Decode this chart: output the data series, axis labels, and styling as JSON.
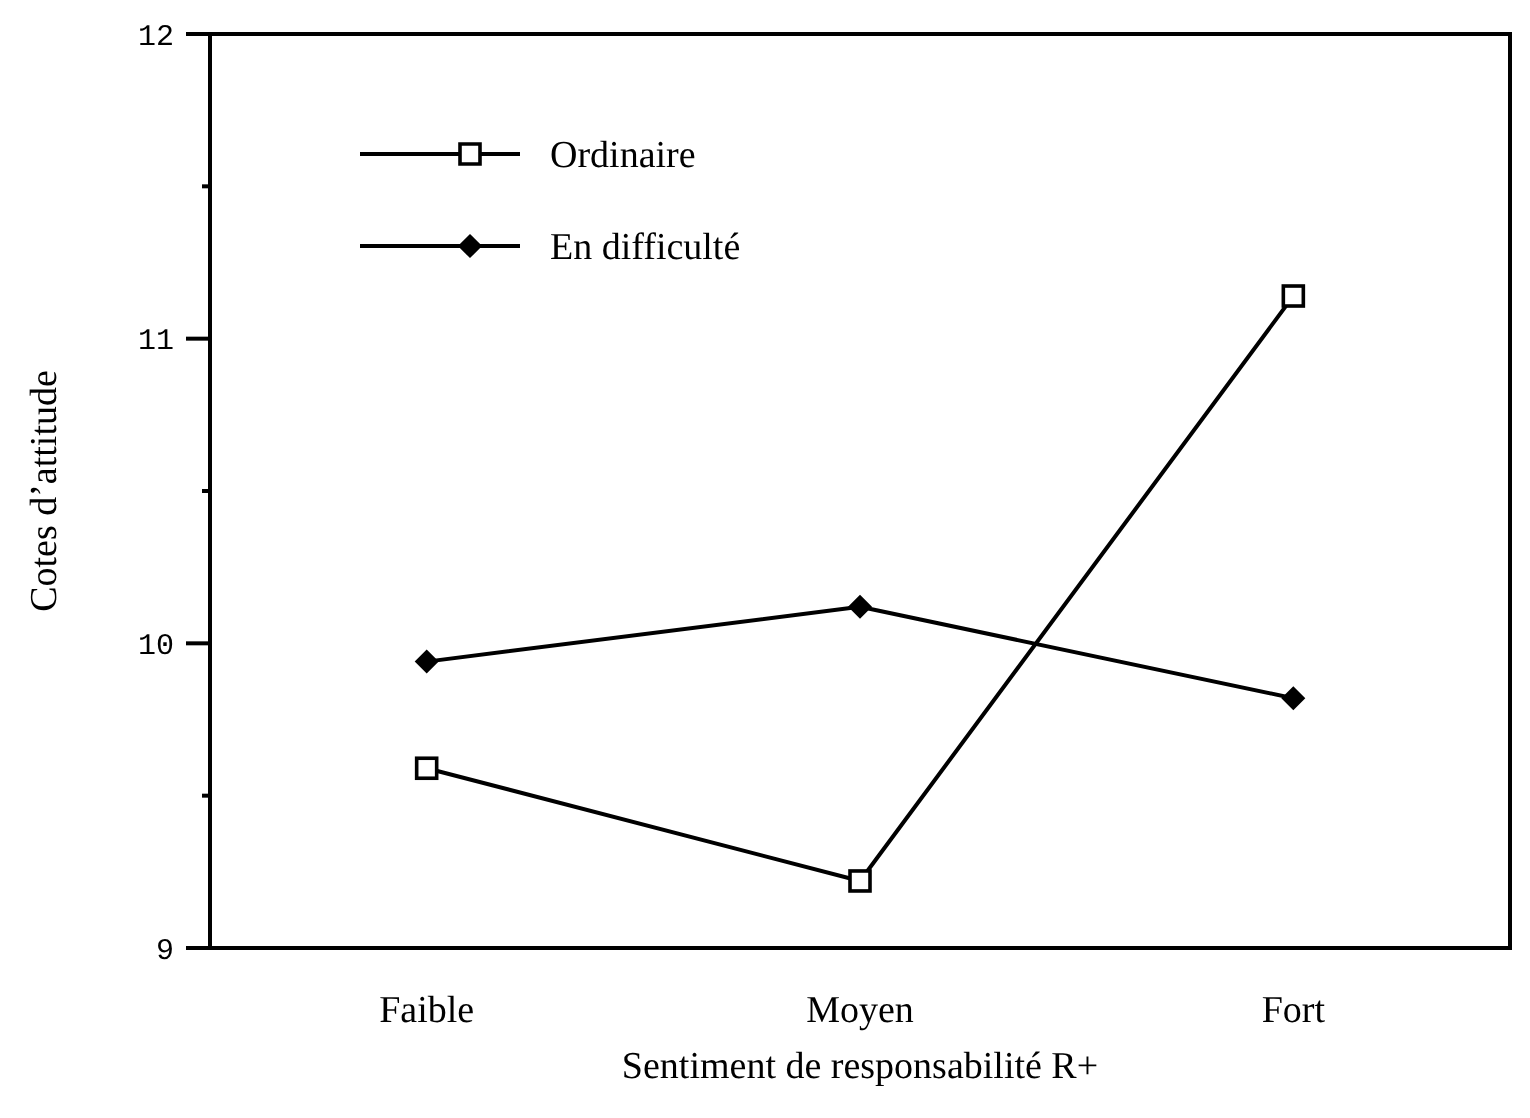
{
  "chart_data": {
    "type": "line",
    "xlabel": "Sentiment de responsabilité R+",
    "ylabel": "Cotes d’attitude",
    "categories": [
      "Faible",
      "Moyen",
      "Fort"
    ],
    "series": [
      {
        "name": "Ordinaire",
        "color": "#000000",
        "marker": "square",
        "values": [
          9.59,
          9.22,
          11.14
        ]
      },
      {
        "name": "En difficulté",
        "color": "#000000",
        "marker": "diamond",
        "values": [
          9.94,
          10.12,
          9.82
        ]
      }
    ],
    "ylim": [
      9,
      12
    ],
    "yticks": [
      9,
      {
        "value": 9.5,
        "label": null
      },
      10,
      {
        "value": 10.5,
        "label": null
      },
      11,
      {
        "value": 11.5,
        "label": null
      },
      12
    ],
    "grid": false,
    "legend": "top left",
    "line_style": "solid"
  }
}
